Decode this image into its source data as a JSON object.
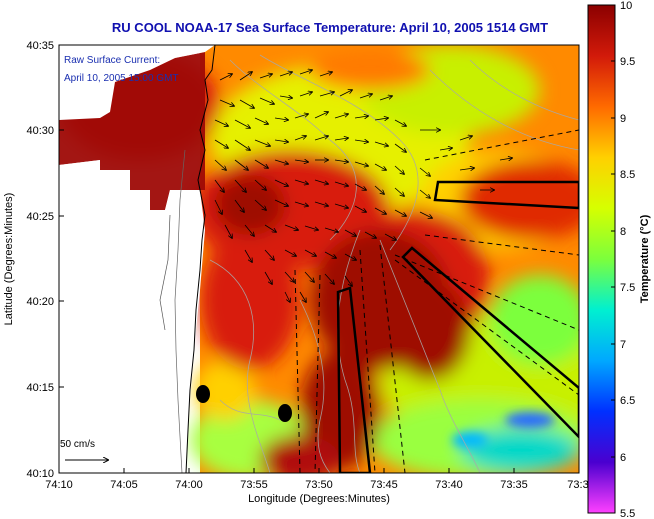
{
  "map": {
    "title": "RU COOL  NOAA-17  Sea Surface Temperature:  April 10, 2005 1514 GMT",
    "overlay_line1": "Raw Surface Current:",
    "overlay_line2": "April 10, 2005 15:00 GMT",
    "scale_label": "50 cm/s",
    "xlabel": "Longitude (Degrees:Minutes)",
    "ylabel": "Latitude (Degrees:Minutes)",
    "x_ticks": [
      "74:10",
      "74:05",
      "74:00",
      "73:55",
      "73:50",
      "73:45",
      "73:40",
      "73:35",
      "73:3"
    ],
    "y_ticks": [
      "40:35",
      "40:30",
      "40:25",
      "40:20",
      "40:15",
      "40:10"
    ],
    "colorbar": {
      "label": "Temperature (°C)",
      "ticks": [
        "10",
        "9.5",
        "9",
        "8.5",
        "8",
        "7.5",
        "7",
        "6.5",
        "6",
        "5.5"
      ],
      "range": [
        5.5,
        10
      ],
      "stops": [
        "#8b0000",
        "#d21a0a",
        "#ff6a00",
        "#ffd000",
        "#d6ff00",
        "#7cff3c",
        "#00f0d0",
        "#00a8ff",
        "#0030ff",
        "#4a00d0",
        "#ff40ff"
      ]
    },
    "colors": {
      "land": "#ffffff",
      "warm": "#9e0a06",
      "title": "#1010b0"
    }
  }
}
